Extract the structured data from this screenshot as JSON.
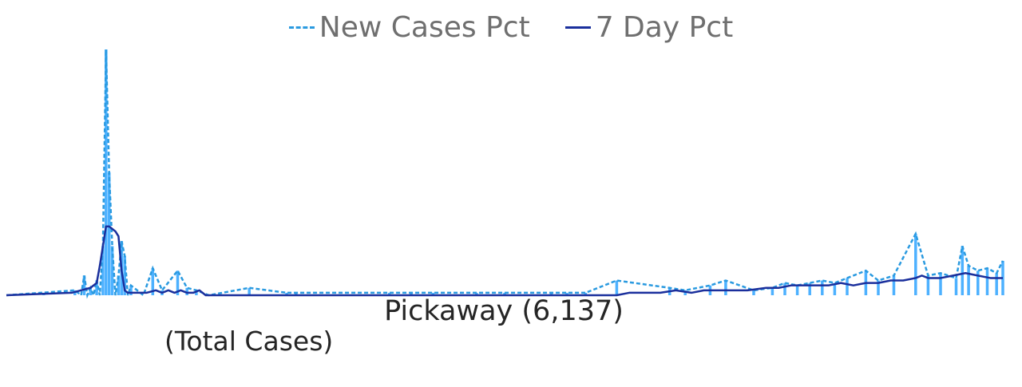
{
  "legend": {
    "items": [
      {
        "label": "New Cases Pct",
        "style": "dashed",
        "color": "#2a9ae0"
      },
      {
        "label": "7 Day Pct",
        "style": "solid",
        "color": "#1a2f9c"
      }
    ]
  },
  "chart_data": {
    "type": "bar",
    "title": "Pickaway (6,137)",
    "subtitle": "(Total Cases)",
    "xlabel": "",
    "ylabel": "",
    "grid": false,
    "legend_position": "top-center",
    "ylim": [
      0,
      100
    ],
    "bar_color": "#4db1ff",
    "spikes": [
      {
        "x": 12,
        "v": 1
      },
      {
        "x": 22,
        "v": 2
      },
      {
        "x": 25,
        "v": 8
      },
      {
        "x": 27,
        "v": 3
      },
      {
        "x": 29,
        "v": 6
      },
      {
        "x": 31,
        "v": 20
      },
      {
        "x": 32,
        "v": 100
      },
      {
        "x": 33,
        "v": 50
      },
      {
        "x": 34,
        "v": 20
      },
      {
        "x": 36,
        "v": 8
      },
      {
        "x": 37,
        "v": 22
      },
      {
        "x": 38,
        "v": 16
      },
      {
        "x": 40,
        "v": 4
      },
      {
        "x": 47,
        "v": 11
      },
      {
        "x": 50,
        "v": 2
      },
      {
        "x": 55,
        "v": 10
      },
      {
        "x": 58,
        "v": 3
      },
      {
        "x": 61,
        "v": 2
      },
      {
        "x": 78,
        "v": 3
      },
      {
        "x": 90,
        "v": 1
      },
      {
        "x": 93,
        "v": 1
      },
      {
        "x": 123,
        "v": 1
      },
      {
        "x": 130,
        "v": 1
      },
      {
        "x": 137,
        "v": 1
      },
      {
        "x": 151,
        "v": 1
      },
      {
        "x": 160,
        "v": 1
      },
      {
        "x": 175,
        "v": 1
      },
      {
        "x": 180,
        "v": 1
      },
      {
        "x": 186,
        "v": 1
      },
      {
        "x": 196,
        "v": 6
      },
      {
        "x": 213,
        "v": 3
      },
      {
        "x": 218,
        "v": 2
      },
      {
        "x": 226,
        "v": 4
      },
      {
        "x": 231,
        "v": 6
      },
      {
        "x": 240,
        "v": 2
      },
      {
        "x": 246,
        "v": 3
      },
      {
        "x": 250,
        "v": 5
      },
      {
        "x": 254,
        "v": 4
      },
      {
        "x": 258,
        "v": 5
      },
      {
        "x": 262,
        "v": 6
      },
      {
        "x": 266,
        "v": 5
      },
      {
        "x": 270,
        "v": 7
      },
      {
        "x": 276,
        "v": 10
      },
      {
        "x": 280,
        "v": 6
      },
      {
        "x": 285,
        "v": 8
      },
      {
        "x": 292,
        "v": 25
      },
      {
        "x": 296,
        "v": 8
      },
      {
        "x": 300,
        "v": 9
      },
      {
        "x": 305,
        "v": 7
      },
      {
        "x": 307,
        "v": 20
      },
      {
        "x": 309,
        "v": 12
      },
      {
        "x": 312,
        "v": 10
      },
      {
        "x": 315,
        "v": 11
      },
      {
        "x": 318,
        "v": 9
      },
      {
        "x": 320,
        "v": 14
      }
    ],
    "series": [
      {
        "name": "New Cases Pct",
        "style": "dashed",
        "color": "#2a9ae0",
        "x": [
          0,
          22,
          24,
          25,
          26,
          27,
          28,
          29,
          30,
          31,
          32,
          33,
          34,
          35,
          36,
          37,
          38,
          39,
          40,
          44,
          47,
          50,
          55,
          58,
          61,
          65,
          78,
          90,
          93,
          123,
          130,
          137,
          151,
          160,
          175,
          180,
          186,
          196,
          213,
          218,
          226,
          231,
          240,
          246,
          250,
          254,
          258,
          262,
          266,
          270,
          276,
          280,
          285,
          292,
          296,
          300,
          305,
          307,
          309,
          312,
          315,
          318,
          320
        ],
        "values": [
          0,
          2,
          0,
          8,
          0,
          3,
          0,
          6,
          0,
          20,
          100,
          50,
          20,
          0,
          8,
          22,
          16,
          0,
          4,
          0,
          11,
          2,
          10,
          3,
          2,
          0,
          3,
          1,
          1,
          1,
          1,
          1,
          1,
          1,
          1,
          1,
          1,
          6,
          3,
          2,
          4,
          6,
          2,
          3,
          5,
          4,
          5,
          6,
          5,
          7,
          10,
          6,
          8,
          25,
          8,
          9,
          7,
          20,
          12,
          10,
          11,
          9,
          14
        ]
      },
      {
        "name": "7 Day Pct",
        "style": "solid",
        "color": "#1a2f9c",
        "x": [
          0,
          21,
          24,
          27,
          29,
          30,
          31,
          32,
          33,
          34,
          35,
          36,
          37,
          38,
          39,
          40,
          45,
          48,
          50,
          52,
          54,
          56,
          58,
          60,
          62,
          64,
          66,
          196,
          200,
          210,
          215,
          220,
          224,
          228,
          232,
          238,
          244,
          248,
          252,
          256,
          260,
          264,
          268,
          272,
          276,
          280,
          284,
          288,
          292,
          294,
          296,
          300,
          304,
          308,
          312,
          316,
          320
        ],
        "values": [
          0,
          1,
          2,
          3,
          5,
          12,
          20,
          28,
          28,
          27,
          26,
          24,
          10,
          2,
          1,
          1,
          1,
          2,
          1,
          2,
          1,
          2,
          1,
          1,
          2,
          0,
          0,
          0,
          1,
          1,
          2,
          1,
          2,
          2,
          2,
          2,
          3,
          3,
          4,
          4,
          4,
          4,
          5,
          4,
          5,
          5,
          6,
          6,
          7,
          8,
          7,
          7,
          8,
          9,
          8,
          7,
          7
        ]
      }
    ],
    "xlim": [
      0,
      320
    ]
  }
}
